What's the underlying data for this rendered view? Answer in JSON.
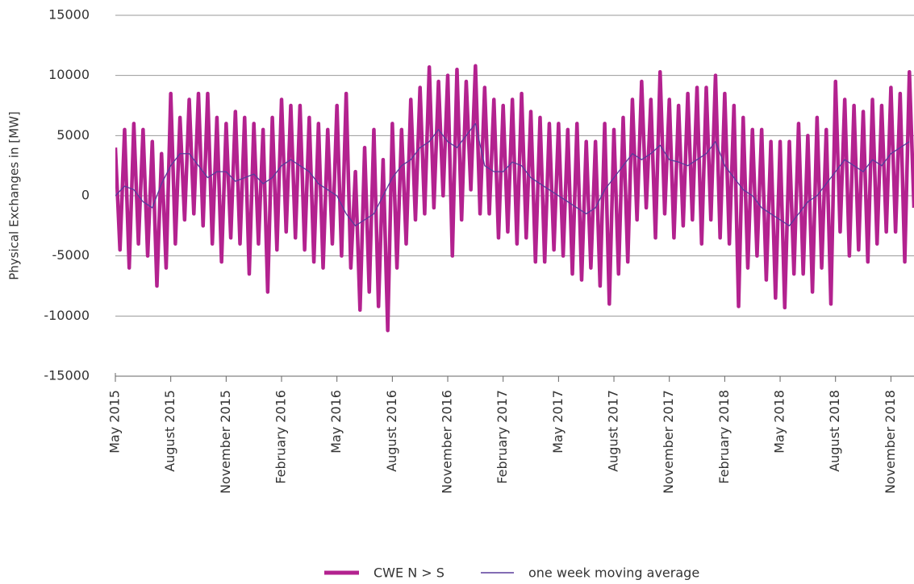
{
  "chart_data": {
    "type": "line",
    "y_label": "Physical Exchanges in [MW]",
    "ylim": [
      -15000,
      15000
    ],
    "yticks": [
      -15000,
      -10000,
      -5000,
      0,
      5000,
      10000,
      15000
    ],
    "xlim": [
      0,
      43.25
    ],
    "xticks": [
      {
        "value": 0,
        "label": "May 2015"
      },
      {
        "value": 3,
        "label": "August 2015"
      },
      {
        "value": 6,
        "label": "November 2015"
      },
      {
        "value": 9,
        "label": "February 2016"
      },
      {
        "value": 12,
        "label": "May 2016"
      },
      {
        "value": 15,
        "label": "August 2016"
      },
      {
        "value": 18,
        "label": "November 2016"
      },
      {
        "value": 21,
        "label": "February 2017"
      },
      {
        "value": 24,
        "label": "May 2017"
      },
      {
        "value": 27,
        "label": "August 2017"
      },
      {
        "value": 30,
        "label": "November 2017"
      },
      {
        "value": 33,
        "label": "February 2018"
      },
      {
        "value": 36,
        "label": "May 2018"
      },
      {
        "value": 39,
        "label": "August 2018"
      },
      {
        "value": 42,
        "label": "November 2018"
      }
    ],
    "grid": true,
    "legend": "bottom",
    "series": [
      {
        "name": "CWE N > S",
        "color": "#b3228f",
        "x": [
          0,
          0.25,
          0.5,
          0.75,
          1,
          1.25,
          1.5,
          1.75,
          2,
          2.25,
          2.5,
          2.75,
          3,
          3.25,
          3.5,
          3.75,
          4,
          4.25,
          4.5,
          4.75,
          5,
          5.25,
          5.5,
          5.75,
          6,
          6.25,
          6.5,
          6.75,
          7,
          7.25,
          7.5,
          7.75,
          8,
          8.25,
          8.5,
          8.75,
          9,
          9.25,
          9.5,
          9.75,
          10,
          10.25,
          10.5,
          10.75,
          11,
          11.25,
          11.5,
          11.75,
          12,
          12.25,
          12.5,
          12.75,
          13,
          13.25,
          13.5,
          13.75,
          14,
          14.25,
          14.5,
          14.75,
          15,
          15.25,
          15.5,
          15.75,
          16,
          16.25,
          16.5,
          16.75,
          17,
          17.25,
          17.5,
          17.75,
          18,
          18.25,
          18.5,
          18.75,
          19,
          19.25,
          19.5,
          19.75,
          20,
          20.25,
          20.5,
          20.75,
          21,
          21.25,
          21.5,
          21.75,
          22,
          22.25,
          22.5,
          22.75,
          23,
          23.25,
          23.5,
          23.75,
          24,
          24.25,
          24.5,
          24.75,
          25,
          25.25,
          25.5,
          25.75,
          26,
          26.25,
          26.5,
          26.75,
          27,
          27.25,
          27.5,
          27.75,
          28,
          28.25,
          28.5,
          28.75,
          29,
          29.25,
          29.5,
          29.75,
          30,
          30.25,
          30.5,
          30.75,
          31,
          31.25,
          31.5,
          31.75,
          32,
          32.25,
          32.5,
          32.75,
          33,
          33.25,
          33.5,
          33.75,
          34,
          34.25,
          34.5,
          34.75,
          35,
          35.25,
          35.5,
          35.75,
          36,
          36.25,
          36.5,
          36.75,
          37,
          37.25,
          37.5,
          37.75,
          38,
          38.25,
          38.5,
          38.75,
          39,
          39.25,
          39.5,
          39.75,
          40,
          40.25,
          40.5,
          40.75,
          41,
          41.25,
          41.5,
          41.75,
          42,
          42.25,
          42.5,
          42.75,
          43,
          43.25
        ],
        "values": [
          4000,
          -4500,
          5500,
          -6000,
          6000,
          -4000,
          5500,
          -5000,
          4500,
          -7500,
          3500,
          -6000,
          8500,
          -4000,
          6500,
          -2000,
          8000,
          -1500,
          8500,
          -2500,
          8500,
          -4000,
          6500,
          -5500,
          6000,
          -3500,
          7000,
          -4000,
          6500,
          -6500,
          6000,
          -4000,
          5500,
          -8000,
          6500,
          -4500,
          8000,
          -3000,
          7500,
          -3500,
          7500,
          -4500,
          6500,
          -5500,
          6000,
          -6000,
          5500,
          -4000,
          7500,
          -5000,
          8500,
          -6000,
          2000,
          -9500,
          4000,
          -8000,
          5500,
          -9200,
          3000,
          -11200,
          6000,
          -6000,
          5500,
          -4000,
          8000,
          -2000,
          9000,
          -1500,
          10700,
          -1000,
          9500,
          0,
          10000,
          -5000,
          10500,
          -2000,
          9500,
          500,
          10800,
          -1500,
          9000,
          -1500,
          8000,
          -3500,
          7500,
          -3000,
          8000,
          -4000,
          8500,
          -3500,
          7000,
          -5500,
          6500,
          -5500,
          6000,
          -4500,
          6000,
          -5000,
          5500,
          -6500,
          6000,
          -7000,
          4500,
          -6000,
          4500,
          -7500,
          6000,
          -9000,
          5500,
          -6500,
          6500,
          -5500,
          8000,
          -2000,
          9500,
          -1000,
          8000,
          -3500,
          10300,
          -1500,
          8000,
          -3500,
          7500,
          -2500,
          8500,
          -2000,
          9000,
          -4000,
          9000,
          -2000,
          10000,
          -3500,
          8500,
          -4000,
          7500,
          -9200,
          6500,
          -6000,
          5500,
          -5000,
          5500,
          -7000,
          4500,
          -8500,
          4500,
          -9300,
          4500,
          -6500,
          6000,
          -6500,
          5000,
          -8000,
          6500,
          -6000,
          5500,
          -9000,
          9500,
          -3000,
          8000,
          -5000,
          7500,
          -4500,
          7000,
          -5500,
          8000,
          -4000,
          7500,
          -3000,
          9000,
          -3000,
          8500,
          -5500,
          10300,
          -1000
        ]
      },
      {
        "name": "one week moving average",
        "color": "#5a3b9c",
        "x": [
          0,
          0.5,
          1,
          1.5,
          2,
          2.5,
          3,
          3.5,
          4,
          4.5,
          5,
          5.5,
          6,
          6.5,
          7,
          7.5,
          8,
          8.5,
          9,
          9.5,
          10,
          10.5,
          11,
          11.5,
          12,
          12.5,
          13,
          13.5,
          14,
          14.5,
          15,
          15.5,
          16,
          16.5,
          17,
          17.5,
          18,
          18.5,
          19,
          19.5,
          20,
          20.5,
          21,
          21.5,
          22,
          22.5,
          23,
          23.5,
          24,
          24.5,
          25,
          25.5,
          26,
          26.5,
          27,
          27.5,
          28,
          28.5,
          29,
          29.5,
          30,
          30.5,
          31,
          31.5,
          32,
          32.5,
          33,
          33.5,
          34,
          34.5,
          35,
          35.5,
          36,
          36.5,
          37,
          37.5,
          38,
          38.5,
          39,
          39.5,
          40,
          40.5,
          41,
          41.5,
          42,
          42.5,
          43
        ],
        "values": [
          0,
          800,
          500,
          -500,
          -1000,
          1000,
          2500,
          3500,
          3500,
          2500,
          1500,
          2000,
          2000,
          1200,
          1500,
          1800,
          1000,
          1500,
          2500,
          3000,
          2500,
          2000,
          1000,
          500,
          0,
          -1500,
          -2500,
          -2000,
          -1500,
          0,
          1500,
          2500,
          3000,
          4000,
          4500,
          5500,
          4500,
          4000,
          5000,
          6000,
          2500,
          2000,
          2000,
          2800,
          2500,
          1500,
          1000,
          500,
          0,
          -500,
          -1000,
          -1500,
          -1000,
          500,
          1500,
          2500,
          3500,
          3000,
          3500,
          4200,
          3000,
          2800,
          2500,
          3000,
          3500,
          4500,
          2500,
          1500,
          500,
          0,
          -1000,
          -1500,
          -2000,
          -2500,
          -1500,
          -500,
          0,
          1000,
          2000,
          3000,
          2500,
          2000,
          3000,
          2500,
          3500,
          4000,
          4500
        ]
      }
    ]
  }
}
